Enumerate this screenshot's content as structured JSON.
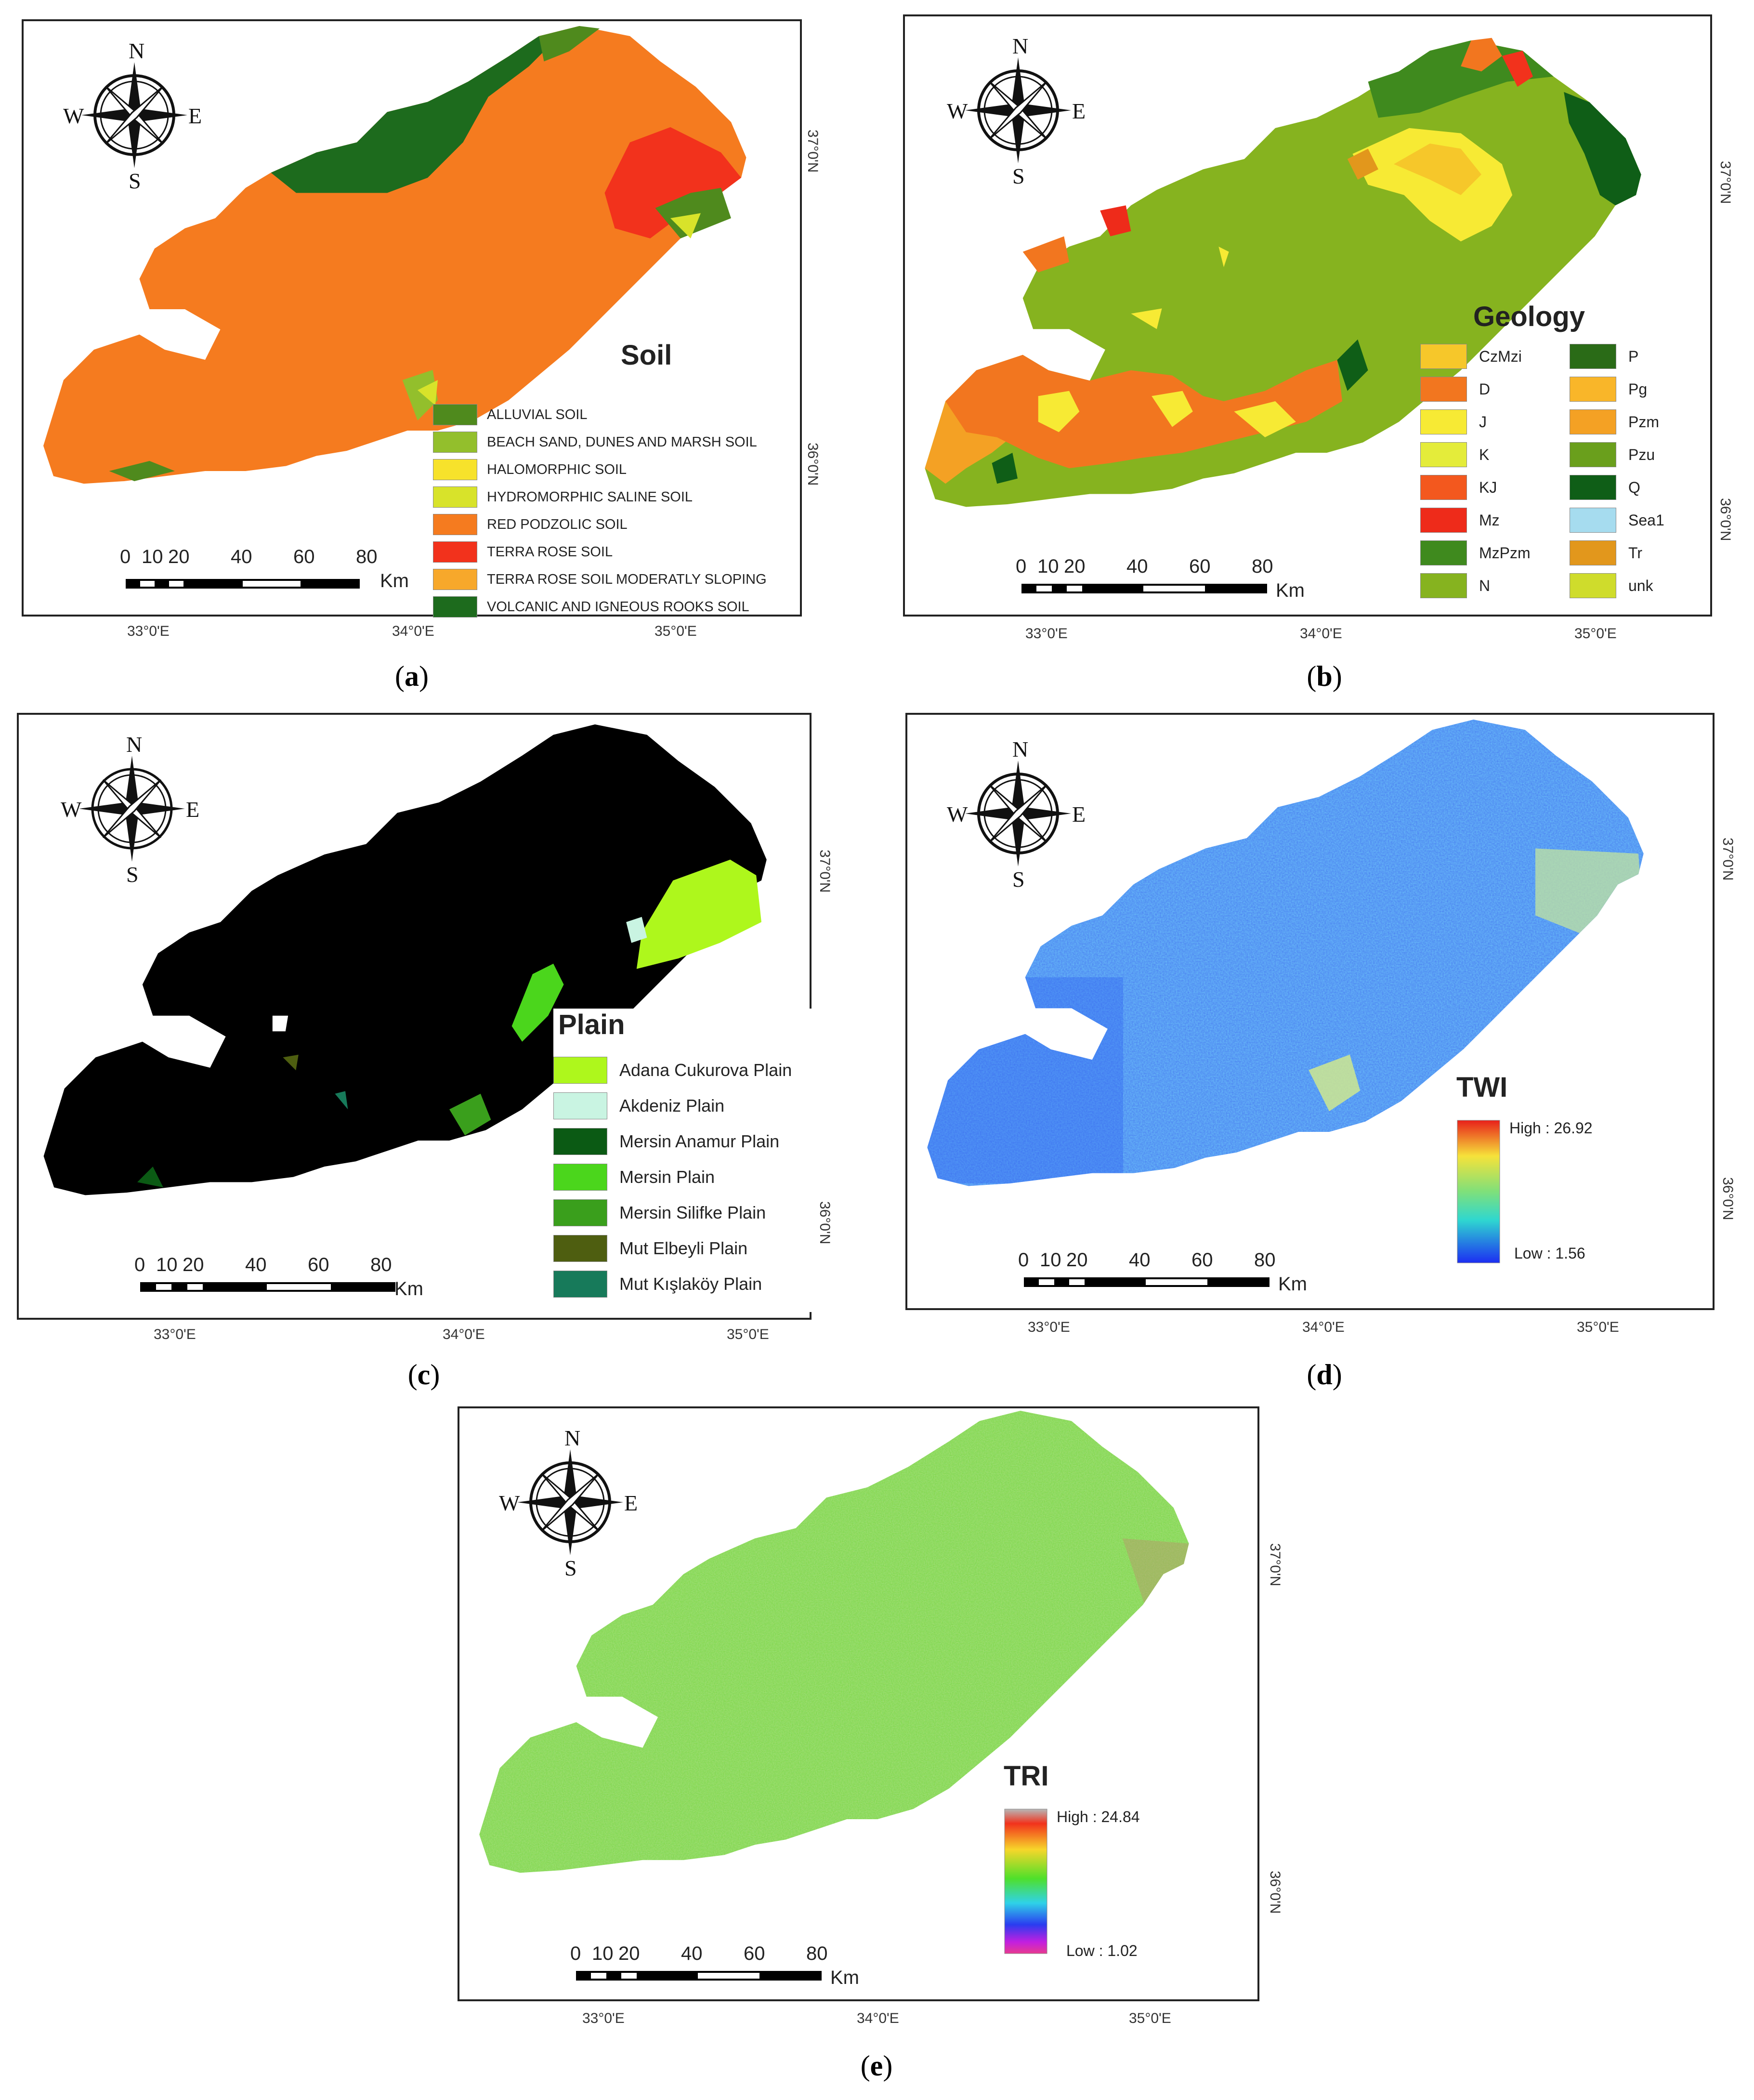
{
  "compass": {
    "n": "N",
    "s": "S",
    "e": "E",
    "w": "W"
  },
  "scalebar": {
    "ticks": [
      "0",
      "10",
      "20",
      "40",
      "60",
      "80"
    ],
    "unit": "Km"
  },
  "lon_ticks": [
    "33°0'E",
    "34°0'E",
    "35°0'E"
  ],
  "lat_ticks": [
    "37°0'N",
    "36°0'N"
  ],
  "panels": {
    "a": {
      "caption": "a",
      "legend_title": "Soil",
      "legend": [
        {
          "label": "ALLUVIAL SOIL",
          "color": "#4f8a1d"
        },
        {
          "label": "BEACH SAND, DUNES AND MARSH SOIL",
          "color": "#93bf2c"
        },
        {
          "label": "HALOMORPHIC SOIL",
          "color": "#f7e22b"
        },
        {
          "label": "HYDROMORPHIC SALINE SOIL",
          "color": "#d8e32a"
        },
        {
          "label": "RED PODZOLIC SOIL",
          "color": "#f57b1f"
        },
        {
          "label": "TERRA ROSE SOIL",
          "color": "#f2321c"
        },
        {
          "label": "TERRA ROSE SOIL MODERATLY SLOPING",
          "color": "#f7a82b"
        },
        {
          "label": "VOLCANIC AND IGNEOUS ROOKS SOIL",
          "color": "#1d6b1d"
        }
      ]
    },
    "b": {
      "caption": "b",
      "legend_title": "Geology",
      "legend": [
        {
          "label": "CzMzi",
          "color": "#f6c72a"
        },
        {
          "label": "D",
          "color": "#f2761f"
        },
        {
          "label": "J",
          "color": "#f7ea34"
        },
        {
          "label": "K",
          "color": "#e4ec3a"
        },
        {
          "label": "KJ",
          "color": "#f3581e"
        },
        {
          "label": "Mz",
          "color": "#ee2b1a"
        },
        {
          "label": "MzPzm",
          "color": "#3f8a1e"
        },
        {
          "label": "N",
          "color": "#86b31f"
        },
        {
          "label": "P",
          "color": "#2a6b17"
        },
        {
          "label": "Pg",
          "color": "#f9b629"
        },
        {
          "label": "Pzm",
          "color": "#f4a124"
        },
        {
          "label": "Pzu",
          "color": "#6a9f1c"
        },
        {
          "label": "Q",
          "color": "#0f5e17"
        },
        {
          "label": "Sea1",
          "color": "#a6dcef"
        },
        {
          "label": "Tr",
          "color": "#e2971c"
        },
        {
          "label": "unk",
          "color": "#cfdc2c"
        }
      ]
    },
    "c": {
      "caption": "c",
      "legend_title": "Plain",
      "legend": [
        {
          "label": "Adana Cukurova Plain",
          "color": "#aef71c"
        },
        {
          "label": "Akdeniz Plain",
          "color": "#c9f4e2"
        },
        {
          "label": "Mersin Anamur Plain",
          "color": "#0b5a14"
        },
        {
          "label": "Mersin Plain",
          "color": "#4bd61c"
        },
        {
          "label": "Mersin Silifke Plain",
          "color": "#3a9f1c"
        },
        {
          "label": "Mut Elbeyli Plain",
          "color": "#4e5e10"
        },
        {
          "label": "Mut Kışlaköy Plain",
          "color": "#177a5a"
        }
      ]
    },
    "d": {
      "caption": "d",
      "legend_title": "TWI",
      "high": "High : 26.92",
      "low": "Low : 1.56"
    },
    "e": {
      "caption": "e",
      "legend_title": "TRI",
      "high": "High : 24.84",
      "low": "Low : 1.02"
    }
  }
}
